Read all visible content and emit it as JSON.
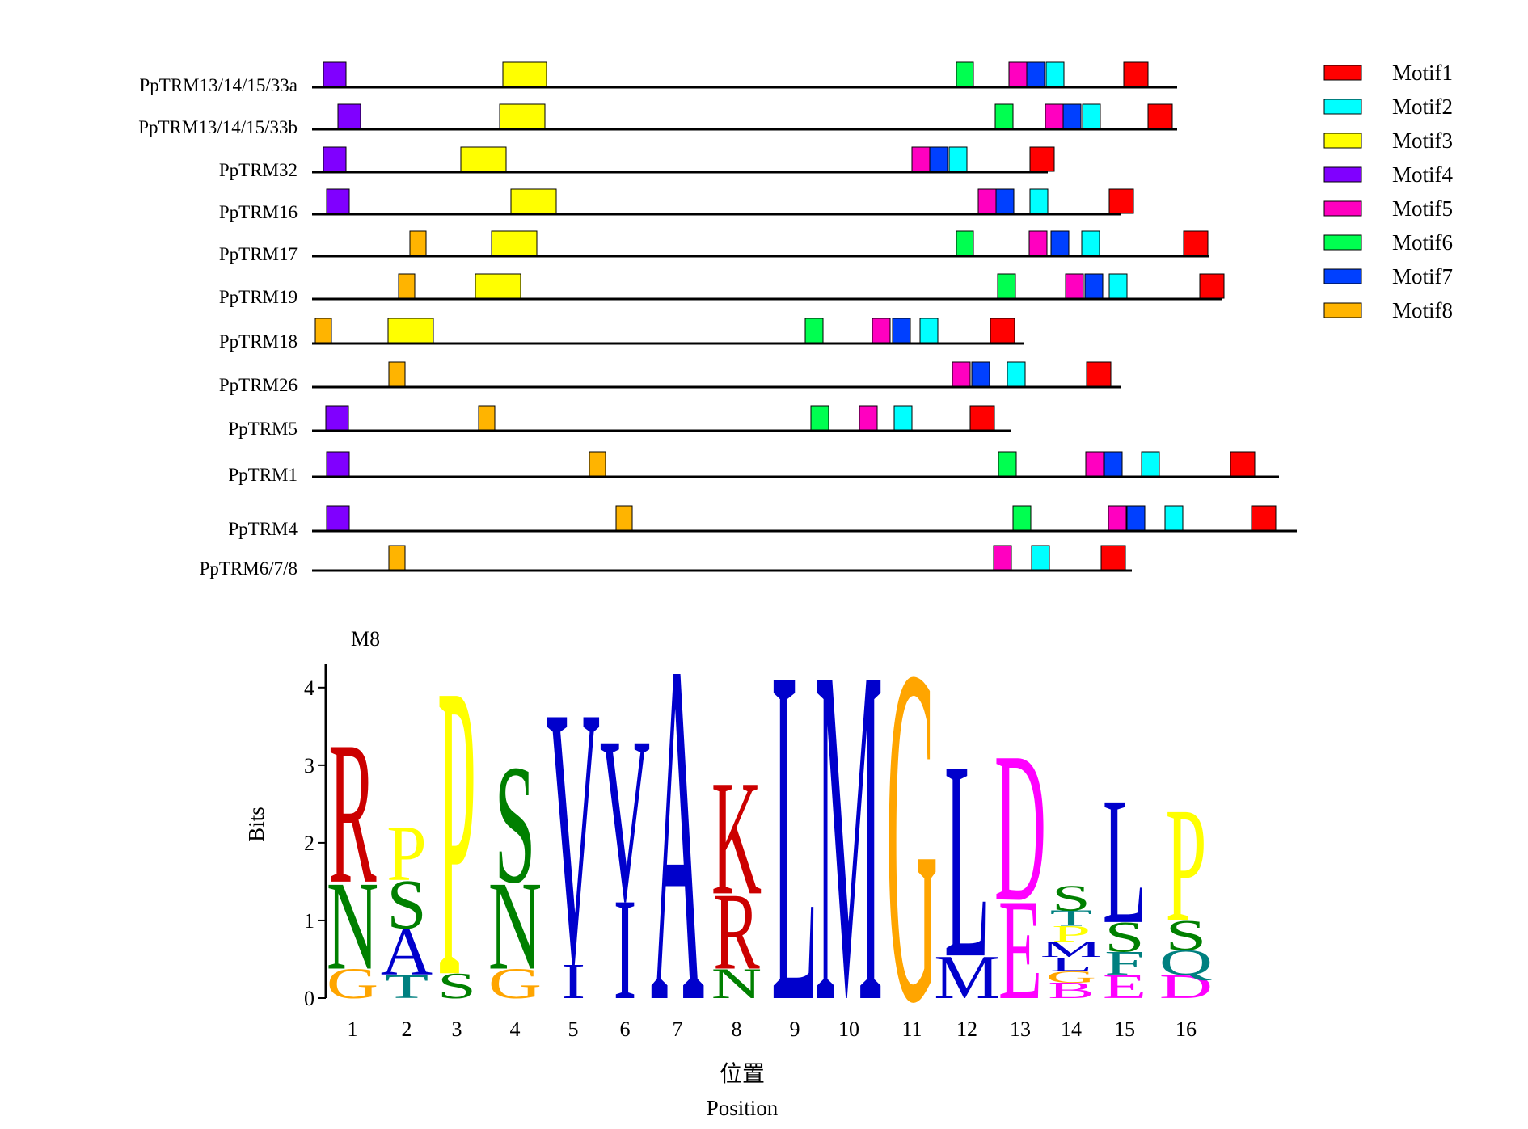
{
  "motif_map": {
    "legend": [
      {
        "label": "Motif1",
        "color": "#ff0000"
      },
      {
        "label": "Motif2",
        "color": "#00ffff"
      },
      {
        "label": "Motif3",
        "color": "#ffff00"
      },
      {
        "label": "Motif4",
        "color": "#8000ff"
      },
      {
        "label": "Motif5",
        "color": "#ff00c0"
      },
      {
        "label": "Motif6",
        "color": "#00ff50"
      },
      {
        "label": "Motif7",
        "color": "#0040ff"
      },
      {
        "label": "Motif8",
        "color": "#ffb400"
      }
    ],
    "proteins": [
      {
        "name": "PpTRM13/14/15/33a",
        "length": 1070,
        "motifs": [
          [
            4,
            14,
            42
          ],
          [
            3,
            236,
            290
          ],
          [
            6,
            797,
            818
          ],
          [
            5,
            862,
            884
          ],
          [
            7,
            884,
            906
          ],
          [
            2,
            908,
            930
          ],
          [
            1,
            1004,
            1034
          ]
        ]
      },
      {
        "name": "PpTRM13/14/15/33b",
        "length": 1070,
        "motifs": [
          [
            4,
            32,
            60
          ],
          [
            3,
            232,
            288
          ],
          [
            6,
            845,
            867
          ],
          [
            5,
            907,
            929
          ],
          [
            7,
            929,
            951
          ],
          [
            2,
            953,
            975
          ],
          [
            1,
            1034,
            1064
          ]
        ]
      },
      {
        "name": "PpTRM32",
        "length": 910,
        "motifs": [
          [
            4,
            14,
            42
          ],
          [
            3,
            184,
            240
          ],
          [
            5,
            742,
            764
          ],
          [
            7,
            764,
            786
          ],
          [
            2,
            788,
            810
          ],
          [
            1,
            888,
            918
          ]
        ]
      },
      {
        "name": "PpTRM16",
        "length": 1000,
        "motifs": [
          [
            4,
            18,
            46
          ],
          [
            3,
            246,
            302
          ],
          [
            5,
            824,
            846
          ],
          [
            7,
            846,
            868
          ],
          [
            2,
            888,
            910
          ],
          [
            1,
            986,
            1016
          ]
        ]
      },
      {
        "name": "PpTRM17",
        "length": 1110,
        "motifs": [
          [
            8,
            121,
            141
          ],
          [
            3,
            222,
            278
          ],
          [
            6,
            797,
            818
          ],
          [
            5,
            887,
            909
          ],
          [
            7,
            914,
            936
          ],
          [
            2,
            952,
            974
          ],
          [
            1,
            1078,
            1108
          ]
        ]
      },
      {
        "name": "PpTRM19",
        "length": 1125,
        "motifs": [
          [
            8,
            107,
            127
          ],
          [
            3,
            202,
            258
          ],
          [
            6,
            848,
            870
          ],
          [
            5,
            932,
            954
          ],
          [
            7,
            956,
            978
          ],
          [
            2,
            986,
            1008
          ],
          [
            1,
            1098,
            1128
          ]
        ]
      },
      {
        "name": "PpTRM18",
        "length": 880,
        "motifs": [
          [
            8,
            4,
            24
          ],
          [
            3,
            94,
            150
          ],
          [
            6,
            610,
            632
          ],
          [
            5,
            693,
            715
          ],
          [
            7,
            718,
            740
          ],
          [
            2,
            752,
            774
          ],
          [
            1,
            839,
            869
          ]
        ]
      },
      {
        "name": "PpTRM26",
        "length": 1000,
        "motifs": [
          [
            8,
            95,
            115
          ],
          [
            5,
            792,
            814
          ],
          [
            7,
            816,
            838
          ],
          [
            2,
            860,
            882
          ],
          [
            1,
            958,
            988
          ]
        ]
      },
      {
        "name": "PpTRM5",
        "length": 864,
        "motifs": [
          [
            4,
            17,
            45
          ],
          [
            8,
            206,
            226
          ],
          [
            6,
            617,
            639
          ],
          [
            5,
            677,
            699
          ],
          [
            2,
            720,
            742
          ],
          [
            1,
            814,
            844
          ]
        ]
      },
      {
        "name": "PpTRM1",
        "length": 1196,
        "motifs": [
          [
            4,
            18,
            46
          ],
          [
            8,
            343,
            363
          ],
          [
            6,
            849,
            871
          ],
          [
            5,
            957,
            979
          ],
          [
            7,
            980,
            1002
          ],
          [
            2,
            1026,
            1048
          ],
          [
            1,
            1136,
            1166
          ]
        ]
      },
      {
        "name": "PpTRM4",
        "length": 1218,
        "motifs": [
          [
            4,
            18,
            46
          ],
          [
            8,
            376,
            396
          ],
          [
            6,
            867,
            889
          ],
          [
            5,
            985,
            1007
          ],
          [
            7,
            1008,
            1030
          ],
          [
            2,
            1055,
            1077
          ],
          [
            1,
            1162,
            1192
          ]
        ]
      },
      {
        "name": "PpTRM6/7/8",
        "length": 1014,
        "motifs": [
          [
            8,
            95,
            115
          ],
          [
            5,
            843,
            865
          ],
          [
            2,
            890,
            912
          ],
          [
            1,
            976,
            1006
          ]
        ]
      }
    ]
  },
  "chart_data": {
    "type": "sequence-logo",
    "title": "M8",
    "ylabel": "Bits",
    "xlabel_cn": "位置",
    "xlabel_en": "Position",
    "ylim": [
      0,
      4.3
    ],
    "yticks": [
      0,
      1,
      2,
      3,
      4
    ],
    "colors": {
      "red": "#cc0000",
      "green": "#008000",
      "orange": "#ffa500",
      "yellow": "#ffff00",
      "blue": "#0000cc",
      "teal": "#008080",
      "magenta": "#ff00ff",
      "purple": "#800080"
    },
    "positions": [
      {
        "label": "1",
        "stack": [
          {
            "letter": "G",
            "color": "orange",
            "bits": 0.38
          },
          {
            "letter": "N",
            "color": "green",
            "bits": 1.12
          },
          {
            "letter": "R",
            "color": "red",
            "bits": 1.8
          }
        ]
      },
      {
        "label": "2",
        "stack": [
          {
            "letter": "T",
            "color": "teal",
            "bits": 0.3
          },
          {
            "letter": "A",
            "color": "blue",
            "bits": 0.6
          },
          {
            "letter": "S",
            "color": "green",
            "bits": 0.62
          },
          {
            "letter": "P",
            "color": "yellow",
            "bits": 0.7
          }
        ]
      },
      {
        "label": "3",
        "stack": [
          {
            "letter": "S",
            "color": "green",
            "bits": 0.32
          },
          {
            "letter": "P",
            "color": "yellow",
            "bits": 3.71
          }
        ]
      },
      {
        "label": "4",
        "stack": [
          {
            "letter": "G",
            "color": "orange",
            "bits": 0.38
          },
          {
            "letter": "N",
            "color": "green",
            "bits": 1.12
          },
          {
            "letter": "S",
            "color": "green",
            "bits": 1.5
          }
        ]
      },
      {
        "label": "5",
        "stack": [
          {
            "letter": "I",
            "color": "blue",
            "bits": 0.44
          },
          {
            "letter": "V",
            "color": "blue",
            "bits": 3.3
          }
        ]
      },
      {
        "label": "6",
        "stack": [
          {
            "letter": "I",
            "color": "blue",
            "bits": 1.28
          },
          {
            "letter": "V",
            "color": "blue",
            "bits": 2.08
          }
        ]
      },
      {
        "label": "7",
        "stack": [
          {
            "letter": "A",
            "color": "blue",
            "bits": 4.3
          }
        ]
      },
      {
        "label": "8",
        "stack": [
          {
            "letter": "N",
            "color": "green",
            "bits": 0.38
          },
          {
            "letter": "R",
            "color": "red",
            "bits": 0.97
          },
          {
            "letter": "K",
            "color": "red",
            "bits": 1.45
          }
        ]
      },
      {
        "label": "9",
        "stack": [
          {
            "letter": "L",
            "color": "blue",
            "bits": 4.25
          }
        ]
      },
      {
        "label": "10",
        "stack": [
          {
            "letter": "M",
            "color": "blue",
            "bits": 4.25
          }
        ]
      },
      {
        "label": "11",
        "stack": [
          {
            "letter": "G",
            "color": "orange",
            "bits": 4.25
          }
        ]
      },
      {
        "label": "12",
        "stack": [
          {
            "letter": "M",
            "color": "blue",
            "bits": 0.55
          },
          {
            "letter": "L",
            "color": "blue",
            "bits": 2.5
          }
        ]
      },
      {
        "label": "13",
        "stack": [
          {
            "letter": "E",
            "color": "magenta",
            "bits": 1.27
          },
          {
            "letter": "D",
            "color": "magenta",
            "bits": 1.89
          }
        ]
      },
      {
        "label": "14",
        "stack": [
          {
            "letter": "B",
            "color": "magenta",
            "bits": 0.2
          },
          {
            "letter": "G",
            "color": "orange",
            "bits": 0.15
          },
          {
            "letter": "L",
            "color": "blue",
            "bits": 0.18
          },
          {
            "letter": "M",
            "color": "blue",
            "bits": 0.2
          },
          {
            "letter": "P",
            "color": "yellow",
            "bits": 0.2
          },
          {
            "letter": "T",
            "color": "teal",
            "bits": 0.2
          },
          {
            "letter": "S",
            "color": "green",
            "bits": 0.32
          }
        ]
      },
      {
        "label": "15",
        "stack": [
          {
            "letter": "E",
            "color": "magenta",
            "bits": 0.3
          },
          {
            "letter": "F",
            "color": "teal",
            "bits": 0.3
          },
          {
            "letter": "S",
            "color": "green",
            "bits": 0.38
          },
          {
            "letter": "L",
            "color": "blue",
            "bits": 1.6
          }
        ]
      },
      {
        "label": "16",
        "stack": [
          {
            "letter": "D",
            "color": "magenta",
            "bits": 0.3
          },
          {
            "letter": "Q",
            "color": "teal",
            "bits": 0.32
          },
          {
            "letter": "S",
            "color": "green",
            "bits": 0.38
          },
          {
            "letter": "P",
            "color": "yellow",
            "bits": 1.45
          }
        ]
      }
    ]
  }
}
